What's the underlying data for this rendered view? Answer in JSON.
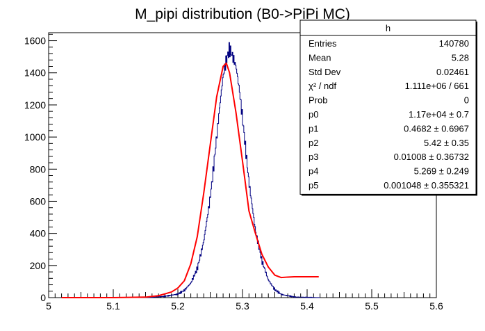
{
  "chart_data": {
    "type": "histogram",
    "title": "M_pipi distribution (B0->PiPi MC)",
    "xlabel": "",
    "ylabel": "",
    "xlim": [
      5.0,
      5.6
    ],
    "ylim": [
      0,
      1650
    ],
    "x_ticks": [
      "5",
      "5.1",
      "5.2",
      "5.3",
      "5.4",
      "5.5",
      "5.6"
    ],
    "y_ticks": [
      "0",
      "200",
      "400",
      "600",
      "800",
      "1000",
      "1200",
      "1400",
      "1600"
    ],
    "grid": false,
    "series": [
      {
        "kind": "histogram",
        "color": "#000080",
        "x": [
          5.02,
          5.1,
          5.16,
          5.18,
          5.2,
          5.21,
          5.22,
          5.23,
          5.24,
          5.25,
          5.255,
          5.26,
          5.265,
          5.27,
          5.275,
          5.28,
          5.285,
          5.29,
          5.295,
          5.3,
          5.305,
          5.31,
          5.32,
          5.33,
          5.34,
          5.35,
          5.36,
          5.38,
          5.42
        ],
        "y": [
          0,
          0,
          2,
          8,
          22,
          45,
          90,
          180,
          350,
          620,
          800,
          1000,
          1200,
          1380,
          1480,
          1550,
          1500,
          1440,
          1300,
          1120,
          920,
          720,
          420,
          230,
          110,
          50,
          20,
          4,
          0
        ]
      },
      {
        "kind": "fit",
        "color": "#ff0000",
        "x": [
          5.02,
          5.1,
          5.15,
          5.17,
          5.19,
          5.2,
          5.21,
          5.22,
          5.23,
          5.24,
          5.25,
          5.26,
          5.27,
          5.275,
          5.28,
          5.29,
          5.3,
          5.31,
          5.32,
          5.33,
          5.34,
          5.35,
          5.36,
          5.37,
          5.38,
          5.4,
          5.418
        ],
        "y": [
          0,
          0,
          3,
          12,
          35,
          60,
          105,
          210,
          380,
          650,
          950,
          1250,
          1440,
          1460,
          1400,
          1150,
          850,
          540,
          400,
          270,
          190,
          140,
          125,
          128,
          130,
          130,
          130
        ]
      }
    ],
    "stats_box": {
      "title": "h",
      "rows": [
        {
          "label": "Entries",
          "value": "140780"
        },
        {
          "label": "Mean",
          "value": "5.28"
        },
        {
          "label": "Std Dev",
          "value": "0.02461"
        },
        {
          "label": "χ² / ndf",
          "value": "1.111e+06 / 661"
        },
        {
          "label": "Prob",
          "value": "0"
        },
        {
          "label": "p0",
          "value": "1.17e+04 ± 0.7"
        },
        {
          "label": "p1",
          "value": "0.4682 ± 0.6967"
        },
        {
          "label": "p2",
          "value": "5.42 ± 0.35"
        },
        {
          "label": "p3",
          "value": "0.01008 ± 0.36732"
        },
        {
          "label": "p4",
          "value": "5.269 ± 0.249"
        },
        {
          "label": "p5",
          "value": "0.001048 ± 0.355321"
        }
      ]
    }
  }
}
